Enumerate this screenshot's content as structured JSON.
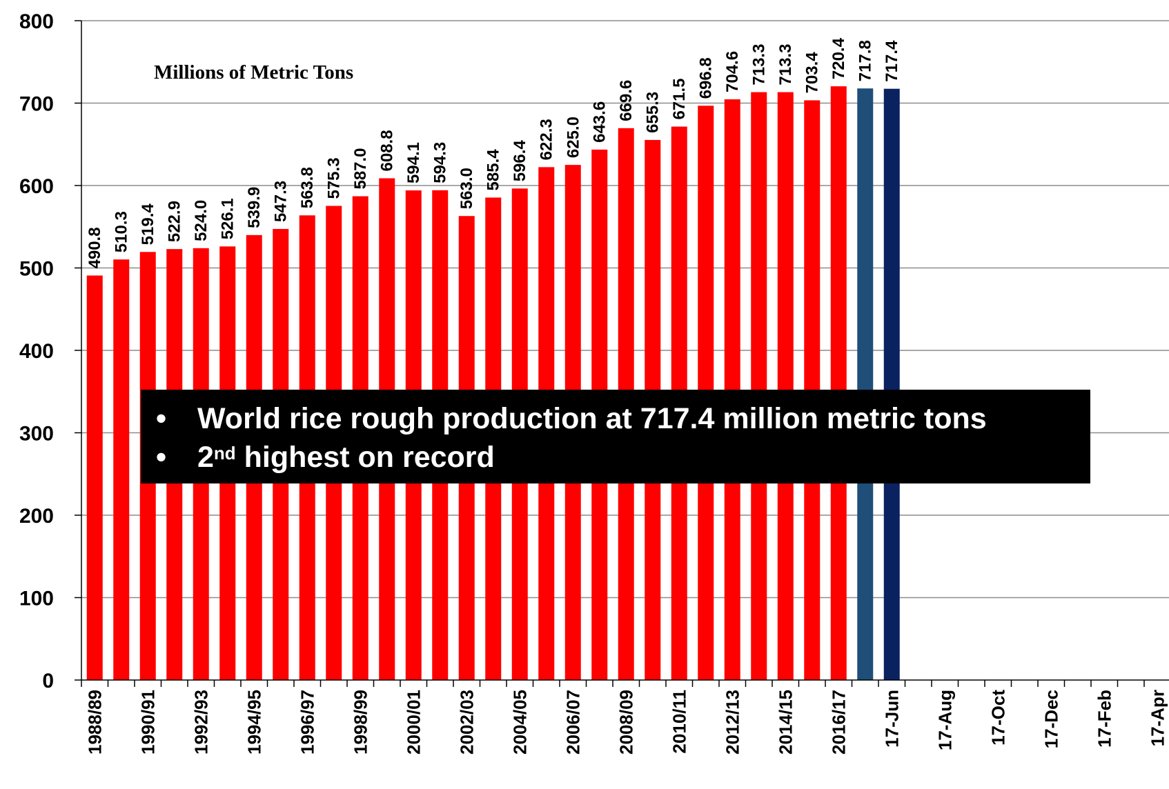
{
  "chart_data": {
    "type": "bar",
    "unit_label": "Millions of Metric Tons",
    "ylim": [
      0,
      800
    ],
    "yticks": [
      "0",
      "100",
      "200",
      "300",
      "400",
      "500",
      "600",
      "700",
      "800"
    ],
    "grid": true,
    "x_tick_labels": [
      "1988/89",
      "1990/91",
      "1992/93",
      "1994/95",
      "1996/97",
      "1998/99",
      "2000/01",
      "2002/03",
      "2004/05",
      "2006/07",
      "2008/09",
      "2010/11",
      "2012/13",
      "2014/15",
      "2016/17",
      "17-Jun",
      "17-Aug",
      "17-Oct",
      "17-Dec",
      "17-Feb",
      "17-Apr"
    ],
    "bars": [
      {
        "value": 490.8,
        "label": "490.8",
        "color": "#ff0000"
      },
      {
        "value": 510.3,
        "label": "510.3",
        "color": "#ff0000"
      },
      {
        "value": 519.4,
        "label": "519.4",
        "color": "#ff0000"
      },
      {
        "value": 522.9,
        "label": "522.9",
        "color": "#ff0000"
      },
      {
        "value": 524.0,
        "label": "524.0",
        "color": "#ff0000"
      },
      {
        "value": 526.1,
        "label": "526.1",
        "color": "#ff0000"
      },
      {
        "value": 539.9,
        "label": "539.9",
        "color": "#ff0000"
      },
      {
        "value": 547.3,
        "label": "547.3",
        "color": "#ff0000"
      },
      {
        "value": 563.8,
        "label": "563.8",
        "color": "#ff0000"
      },
      {
        "value": 575.3,
        "label": "575.3",
        "color": "#ff0000"
      },
      {
        "value": 587.0,
        "label": "587.0",
        "color": "#ff0000"
      },
      {
        "value": 608.8,
        "label": "608.8",
        "color": "#ff0000"
      },
      {
        "value": 594.1,
        "label": "594.1",
        "color": "#ff0000"
      },
      {
        "value": 594.3,
        "label": "594.3",
        "color": "#ff0000"
      },
      {
        "value": 563.0,
        "label": "563.0",
        "color": "#ff0000"
      },
      {
        "value": 585.4,
        "label": "585.4",
        "color": "#ff0000"
      },
      {
        "value": 596.4,
        "label": "596.4",
        "color": "#ff0000"
      },
      {
        "value": 622.3,
        "label": "622.3",
        "color": "#ff0000"
      },
      {
        "value": 625.0,
        "label": "625.0",
        "color": "#ff0000"
      },
      {
        "value": 643.6,
        "label": "643.6",
        "color": "#ff0000"
      },
      {
        "value": 669.6,
        "label": "669.6",
        "color": "#ff0000"
      },
      {
        "value": 655.3,
        "label": "655.3",
        "color": "#ff0000"
      },
      {
        "value": 671.5,
        "label": "671.5",
        "color": "#ff0000"
      },
      {
        "value": 696.8,
        "label": "696.8",
        "color": "#ff0000"
      },
      {
        "value": 704.6,
        "label": "704.6",
        "color": "#ff0000"
      },
      {
        "value": 713.3,
        "label": "713.3",
        "color": "#ff0000"
      },
      {
        "value": 713.3,
        "label": "713.3",
        "color": "#ff0000"
      },
      {
        "value": 703.4,
        "label": "703.4",
        "color": "#ff0000"
      },
      {
        "value": 720.4,
        "label": "720.4",
        "color": "#ff0000"
      },
      {
        "value": 717.8,
        "label": "717.8",
        "color": "#1f4e79"
      },
      {
        "value": 717.4,
        "label": "717.4",
        "color": "#0b2260"
      }
    ],
    "callout": {
      "bullet": "•",
      "line1": "World rice rough production at 717.4 million metric tons",
      "line2_pre": "2",
      "line2_sup": "nd",
      "line2_post": " highest on record"
    }
  }
}
